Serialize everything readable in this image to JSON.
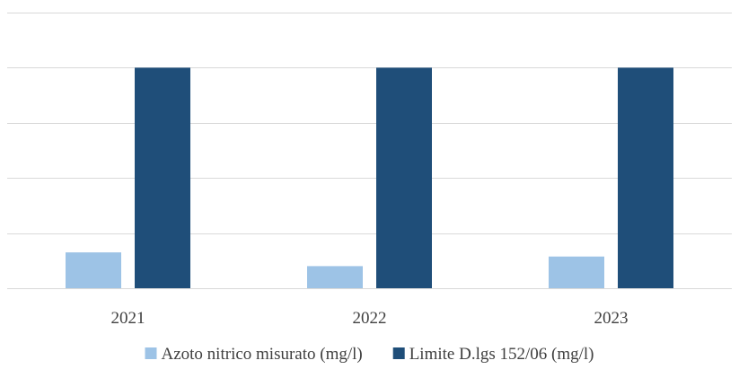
{
  "chart_data": {
    "type": "bar",
    "title": "",
    "xlabel": "",
    "ylabel": "",
    "categories": [
      "2021",
      "2022",
      "2023"
    ],
    "ylim": [
      0,
      100
    ],
    "grid": true,
    "legend_position": "bottom",
    "series": [
      {
        "name": "Azoto nitrico misurato (mg/l)",
        "color": "#9DC3E6",
        "values": [
          13,
          8,
          11.5
        ]
      },
      {
        "name": "Limite D.lgs 152/06 (mg/l)",
        "color": "#1F4E79",
        "values": [
          80,
          80,
          80
        ]
      }
    ]
  }
}
